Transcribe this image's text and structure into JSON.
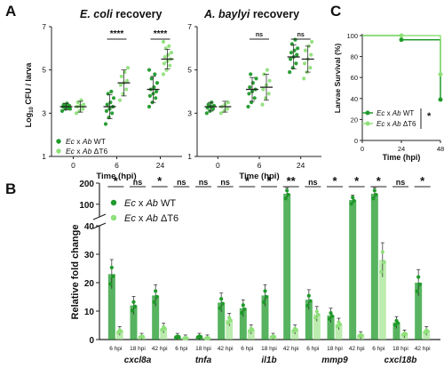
{
  "colors": {
    "wt": "#1f9a2a",
    "t6": "#8fe07a",
    "axis": "#222222"
  },
  "panel_letters": [
    "A",
    "B",
    "C"
  ],
  "chart_data": [
    {
      "id": "A1",
      "type": "scatter",
      "title_italic": "E. coli",
      "title_rest": " recovery",
      "xlabel": "Time (hpi)",
      "ylabel_pre": "Log",
      "ylabel_sub": "10",
      "ylabel_post": " CFU / larva",
      "x_ticks": [
        "0",
        "6",
        "24"
      ],
      "y_ticks": [
        "1",
        "3",
        "5",
        "7"
      ],
      "ylim": [
        1,
        7
      ],
      "legend": [
        {
          "pre": "Ec",
          "mid": " x ",
          "ab": "Ab",
          "post": " WT"
        },
        {
          "pre": "Ec",
          "mid": " x ",
          "ab": "Ab",
          "post": " ΔT6"
        }
      ],
      "series": [
        {
          "name": "Ec x Ab WT",
          "color": "wt",
          "groups": [
            {
              "x": "0",
              "mean": 3.3,
              "sd": 0.15,
              "points": [
                3.1,
                3.2,
                3.25,
                3.3,
                3.3,
                3.35,
                3.4,
                3.45,
                3.2,
                3.3
              ]
            },
            {
              "x": "6",
              "mean": 3.3,
              "sd": 0.55,
              "points": [
                2.5,
                2.8,
                3.0,
                3.1,
                3.2,
                3.3,
                3.4,
                3.5,
                3.7,
                3.9,
                4.0
              ]
            },
            {
              "x": "24",
              "mean": 4.1,
              "sd": 0.6,
              "points": [
                3.3,
                3.5,
                3.7,
                3.8,
                3.9,
                4.0,
                4.1,
                4.2,
                4.4,
                4.6,
                4.8,
                5.0
              ]
            }
          ]
        },
        {
          "name": "Ec x Ab ΔT6",
          "color": "t6",
          "groups": [
            {
              "x": "0",
              "mean": 3.3,
              "sd": 0.25,
              "points": [
                3.0,
                3.1,
                3.2,
                3.3,
                3.35,
                3.4,
                3.5,
                3.6
              ]
            },
            {
              "x": "6",
              "mean": 4.4,
              "sd": 0.6,
              "points": [
                3.6,
                3.9,
                4.1,
                4.3,
                4.4,
                4.5,
                4.7,
                4.9,
                5.1
              ]
            },
            {
              "x": "24",
              "mean": 5.5,
              "sd": 0.45,
              "points": [
                4.8,
                5.0,
                5.2,
                5.3,
                5.4,
                5.5,
                5.6,
                5.7,
                5.8,
                6.0,
                6.1,
                6.3
              ]
            }
          ]
        }
      ],
      "significance": [
        {
          "x": "6",
          "label": "****"
        },
        {
          "x": "24",
          "label": "****"
        }
      ]
    },
    {
      "id": "A2",
      "type": "scatter",
      "title_italic": "A. baylyi",
      "title_rest": " recovery",
      "xlabel": "Time (hpi)",
      "x_ticks": [
        "0",
        "6",
        "24"
      ],
      "y_ticks": [
        "1",
        "3",
        "5",
        "7"
      ],
      "ylim": [
        1,
        7
      ],
      "series": [
        {
          "name": "Ec x Ab WT",
          "color": "wt",
          "groups": [
            {
              "x": "0",
              "mean": 3.3,
              "sd": 0.2,
              "points": [
                3.0,
                3.1,
                3.2,
                3.25,
                3.3,
                3.35,
                3.4,
                3.5
              ]
            },
            {
              "x": "6",
              "mean": 4.1,
              "sd": 0.55,
              "points": [
                3.3,
                3.5,
                3.7,
                3.9,
                4.0,
                4.1,
                4.2,
                4.4,
                4.6,
                4.8
              ]
            },
            {
              "x": "24",
              "mean": 5.6,
              "sd": 0.55,
              "points": [
                4.9,
                5.1,
                5.3,
                5.5,
                5.6,
                5.7,
                5.8,
                5.9,
                6.0,
                6.2,
                6.4
              ]
            }
          ]
        },
        {
          "name": "Ec x Ab ΔT6",
          "color": "t6",
          "groups": [
            {
              "x": "0",
              "mean": 3.3,
              "sd": 0.25,
              "points": [
                3.0,
                3.1,
                3.2,
                3.3,
                3.4,
                3.5
              ]
            },
            {
              "x": "6",
              "mean": 4.2,
              "sd": 0.6,
              "points": [
                3.4,
                3.7,
                3.9,
                4.1,
                4.3,
                4.5,
                4.8,
                5.0
              ]
            },
            {
              "x": "24",
              "mean": 5.5,
              "sd": 0.6,
              "points": [
                4.6,
                4.9,
                5.1,
                5.3,
                5.5,
                5.7,
                5.9,
                6.1,
                6.3
              ]
            }
          ]
        }
      ],
      "significance": [
        {
          "x": "6",
          "label": "ns"
        },
        {
          "x": "24",
          "label": "ns"
        }
      ]
    },
    {
      "id": "C",
      "type": "line",
      "xlabel": "Time (hpi)",
      "ylabel": "Larvae Survival (%)",
      "x_ticks": [
        "0",
        "24",
        "48"
      ],
      "y_ticks": [
        "0",
        "20",
        "40",
        "60",
        "80",
        "100"
      ],
      "xlim": [
        0,
        48
      ],
      "ylim": [
        0,
        100
      ],
      "legend": [
        {
          "pre": "Ec",
          "mid": " x ",
          "ab": "Ab",
          "post": " WT"
        },
        {
          "pre": "Ec",
          "mid": " x ",
          "ab": "Ab",
          "post": " ΔT6"
        }
      ],
      "series": [
        {
          "name": "Ec x Ab WT",
          "color": "wt",
          "x": [
            0,
            24,
            48
          ],
          "y": [
            100,
            96,
            39
          ]
        },
        {
          "name": "Ec x Ab ΔT6",
          "color": "t6",
          "x": [
            0,
            24,
            48
          ],
          "y": [
            100,
            100,
            63
          ]
        }
      ],
      "significance": "*"
    },
    {
      "id": "B",
      "type": "bar",
      "ylabel": "Relative fold change",
      "y_ticks_low": [
        "0",
        "10",
        "20",
        "30",
        "40"
      ],
      "y_ticks_high": [
        "100",
        "200"
      ],
      "ylim_low": [
        0,
        40
      ],
      "ylim_high": [
        40,
        200
      ],
      "legend": [
        {
          "pre": "Ec",
          "mid": " x ",
          "ab": "Ab",
          "post": " WT"
        },
        {
          "pre": "Ec",
          "mid": " x ",
          "ab": "Ab",
          "post": " ΔT6"
        }
      ],
      "timepoints": [
        "6 hpi",
        "18 hpi",
        "42 hpi"
      ],
      "genes": [
        {
          "name": "cxcl8a",
          "wt": [
            23,
            12,
            15.5
          ],
          "t6": [
            3,
            1,
            4
          ],
          "sig": [
            "*",
            "ns",
            "*"
          ]
        },
        {
          "name": "tnfa",
          "wt": [
            1,
            1,
            13
          ],
          "t6": [
            0.5,
            0.5,
            7
          ],
          "sig": [
            "ns",
            "ns",
            "ns"
          ]
        },
        {
          "name": "il1b",
          "wt": [
            11,
            15.5,
            150
          ],
          "t6": [
            3.5,
            1,
            3.5
          ],
          "sig": [
            "*",
            "*",
            "**"
          ]
        },
        {
          "name": "mmp9",
          "wt": [
            14,
            8.5,
            120
          ],
          "t6": [
            9,
            5.5,
            1.5
          ],
          "sig": [
            "ns",
            "*",
            "*"
          ]
        },
        {
          "name": "cxcl18b",
          "wt": [
            150,
            6,
            20
          ],
          "t6": [
            28,
            2,
            3
          ],
          "sig": [
            "*",
            "ns",
            "*"
          ]
        }
      ]
    }
  ]
}
